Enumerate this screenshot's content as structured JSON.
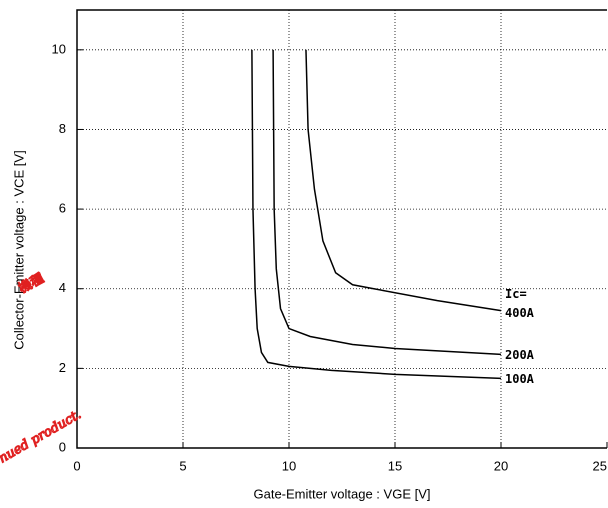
{
  "chart_data": {
    "type": "line",
    "x_label": "Gate-Emitter  voltage  :  VGE [V]",
    "y_label": "Collector-Emitter  voltage  :  VCE [V]",
    "xlim": [
      0,
      25
    ],
    "xticks": [
      0,
      5,
      10,
      15,
      20,
      25
    ],
    "ylim": [
      0,
      11
    ],
    "yticks": [
      0,
      2,
      4,
      6,
      8,
      10
    ],
    "grid": true,
    "legend_title": "Ic=",
    "annotations": [
      "機種",
      "nued product."
    ],
    "series": [
      {
        "name": "100A",
        "color": "#000000",
        "x": [
          8.25,
          8.3,
          8.4,
          8.5,
          8.7,
          9,
          10,
          12,
          15,
          20
        ],
        "values": [
          10,
          6,
          4,
          3,
          2.4,
          2.15,
          2.05,
          1.95,
          1.85,
          1.75
        ]
      },
      {
        "name": "200A",
        "color": "#000000",
        "x": [
          9.25,
          9.3,
          9.4,
          9.6,
          10,
          11,
          13,
          15,
          20
        ],
        "values": [
          10,
          6,
          4.5,
          3.5,
          3.0,
          2.8,
          2.6,
          2.5,
          2.35
        ]
      },
      {
        "name": "400A",
        "color": "#000000",
        "x": [
          10.8,
          10.9,
          11.2,
          11.6,
          12.2,
          13,
          14,
          17,
          20
        ],
        "values": [
          10,
          8,
          6.5,
          5.2,
          4.4,
          4.1,
          4.0,
          3.7,
          3.45
        ]
      }
    ]
  }
}
